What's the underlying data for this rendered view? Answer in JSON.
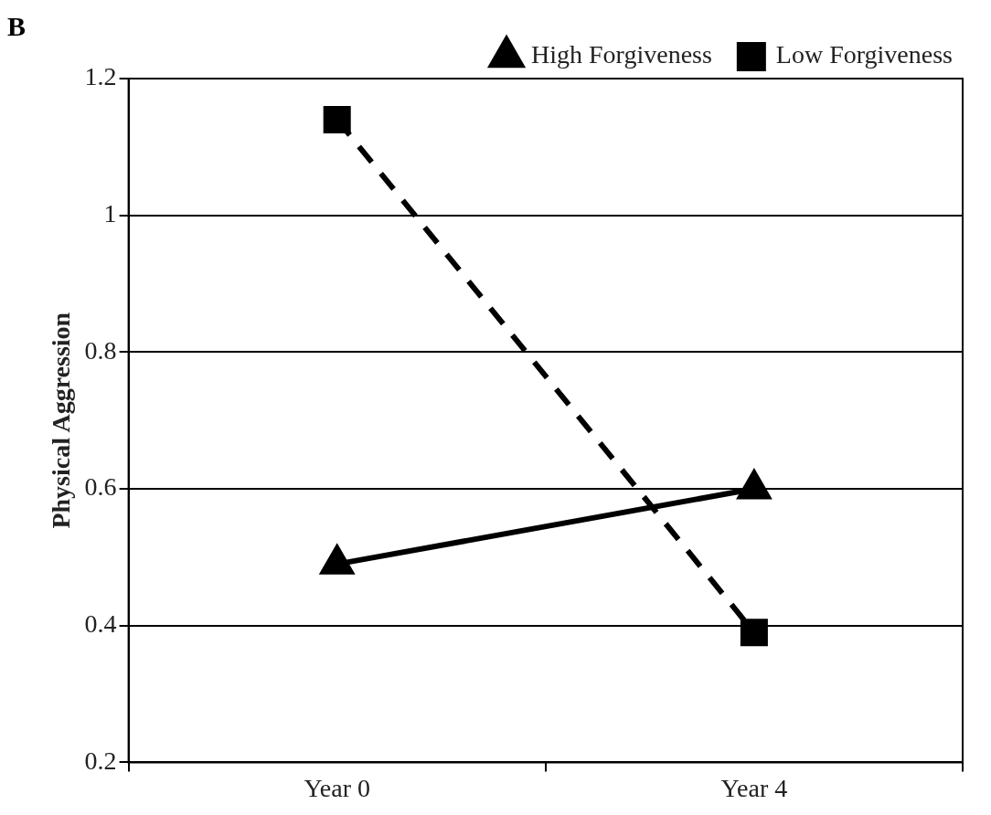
{
  "chart_data": {
    "type": "line",
    "ylabel": "Physical Aggression",
    "annotations": [
      "B"
    ],
    "categories": [
      "Year 0",
      "Year 4"
    ],
    "series": [
      {
        "name": "High Forgiveness",
        "color": "#000000",
        "values": [
          0.49,
          0.6
        ],
        "marker": "triangle",
        "line_style": "solid"
      },
      {
        "name": "Low Forgiveness",
        "color": "#000000",
        "values": [
          1.14,
          0.39
        ],
        "marker": "square",
        "line_style": "dashed"
      }
    ],
    "ylim": [
      0.2,
      1.2
    ],
    "yticks": [
      0.2,
      0.4,
      0.6,
      0.8,
      1,
      1.2
    ],
    "grid": "y",
    "legend": "top right"
  }
}
